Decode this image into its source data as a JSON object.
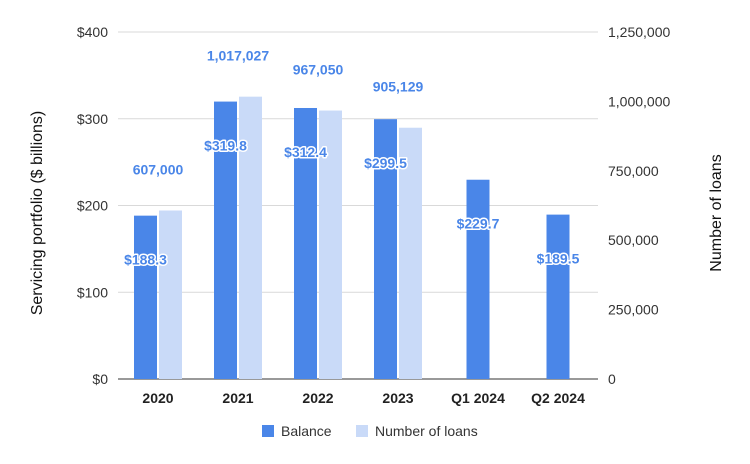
{
  "chart_data": {
    "type": "bar",
    "categories": [
      "2020",
      "2021",
      "2022",
      "2023",
      "Q1 2024",
      "Q2 2024"
    ],
    "series": [
      {
        "name": "Balance",
        "axis": "left",
        "color": "#4a86e8",
        "values": [
          188.3,
          319.8,
          312.4,
          299.5,
          229.7,
          189.5
        ],
        "data_labels": [
          "$188.3",
          "$319.8",
          "$312.4",
          "$299.5",
          "$229.7",
          "$189.5"
        ]
      },
      {
        "name": "Number of loans",
        "axis": "right",
        "color": "#c9daf8",
        "values": [
          607000,
          1017027,
          967050,
          905129,
          null,
          null
        ],
        "data_labels": [
          "607,000",
          "1,017,027",
          "967,050",
          "905,129",
          "",
          ""
        ]
      }
    ],
    "ylabel": "Servicing portfolio ($ billions)",
    "ylabel_right": "Number of loans",
    "ylim": [
      0,
      400
    ],
    "ylim_right": [
      0,
      1250000
    ],
    "yticks": [
      "$0",
      "$100",
      "$200",
      "$300",
      "$400"
    ],
    "yticks_right": [
      "0",
      "250,000",
      "500,000",
      "750,000",
      "1,000,000",
      "1,250,000"
    ],
    "grid": true,
    "legend_position": "bottom"
  }
}
